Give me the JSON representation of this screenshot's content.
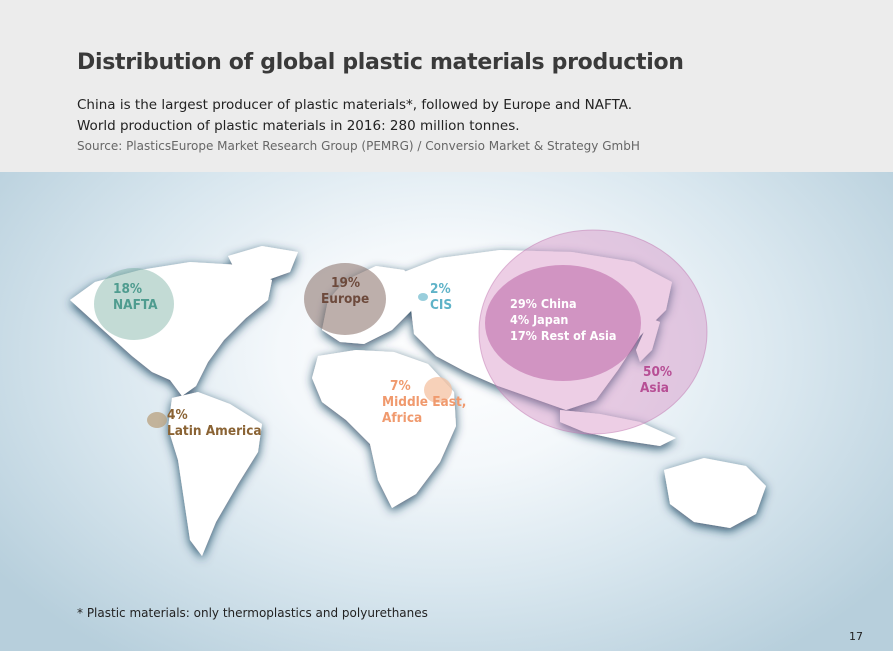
{
  "header": {
    "title": "Distribution of global plastic materials production",
    "subtitle_line1": "China is the largest producer of plastic materials*, followed by Europe and NAFTA.",
    "subtitle_line2": "World production of plastic materials in 2016: 280 million tonnes.",
    "source": "Source: PlasticsEurope Market Research Group (PEMRG) / Conversio Market & Strategy GmbH"
  },
  "regions": {
    "nafta": {
      "pct": "18%",
      "name": "NAFTA",
      "color": "#5ba79a",
      "share": 18
    },
    "europe": {
      "pct": "19%",
      "name": "Europe",
      "color": "#7a5a4b",
      "share": 19
    },
    "cis": {
      "pct": "2%",
      "name": "CIS",
      "color": "#6bb8cc",
      "share": 2
    },
    "middle_east_africa": {
      "pct": "7%",
      "name_line1": "Middle East,",
      "name_line2": "Africa",
      "color": "#f2a57d",
      "share": 7
    },
    "latin_america": {
      "pct": "4%",
      "name": "Latin America",
      "color": "#8a6a3e",
      "share": 4
    },
    "asia": {
      "pct": "50%",
      "name": "Asia",
      "color": "#b74f95",
      "share": 50,
      "china": "29% China",
      "japan": "4% Japan",
      "rest_of_asia": "17% Rest of Asia"
    }
  },
  "footnote": "* Plastic materials: only thermoplastics and polyurethanes",
  "page_number": "17"
}
